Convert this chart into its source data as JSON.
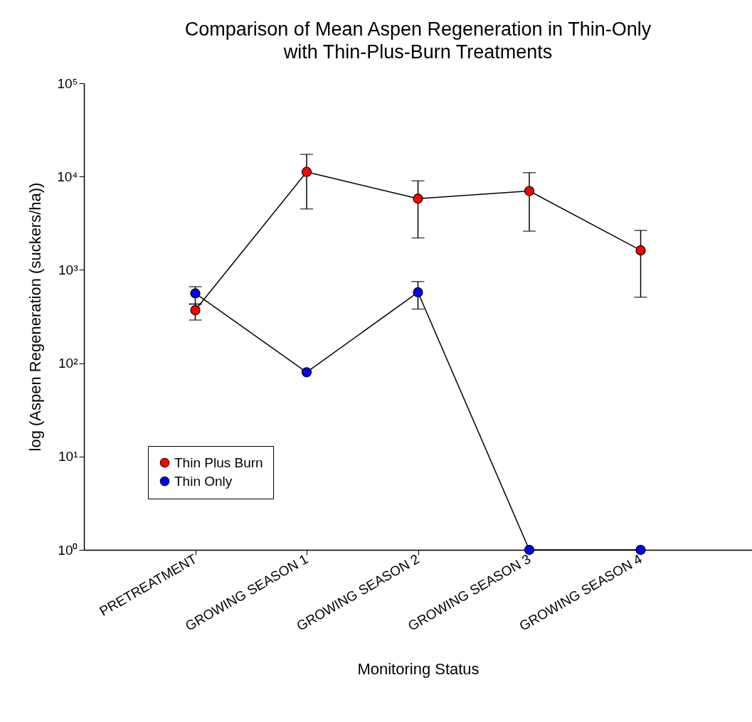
{
  "chart_data": {
    "type": "line",
    "title": "Comparison of Mean Aspen Regeneration in Thin-Only with Thin-Plus-Burn Treatments",
    "xlabel": "Monitoring Status",
    "ylabel": "log (Aspen Regeneration (suckers/ha))",
    "categories": [
      "PRETREATMENT",
      "GROWING SEASON 1",
      "GROWING SEASON 2",
      "GROWING SEASON 3",
      "GROWING SEASON 4"
    ],
    "log": true,
    "ylim": [
      1,
      100000
    ],
    "yticks": [
      {
        "value": 1,
        "label": "10⁰"
      },
      {
        "value": 10,
        "label": "10¹"
      },
      {
        "value": 100,
        "label": "10²"
      },
      {
        "value": 1000,
        "label": "10³"
      },
      {
        "value": 10000,
        "label": "10⁴"
      },
      {
        "value": 100000,
        "label": "10⁵"
      }
    ],
    "marker": "circle",
    "line_style": "solid",
    "legend": "bottom left",
    "series": [
      {
        "name": "Thin Plus Burn",
        "color": "#ff0000",
        "values": [
          370,
          11200,
          5800,
          7000,
          1620
        ],
        "errors": [
          [
            290,
            430
          ],
          [
            4500,
            17300
          ],
          [
            2200,
            9000
          ],
          [
            2600,
            11000
          ],
          [
            510,
            2650
          ]
        ]
      },
      {
        "name": "Thin Only",
        "color": "#0000ff",
        "values": [
          560,
          80,
          575,
          1,
          1
        ],
        "errors": [
          [
            430,
            660
          ],
          null,
          [
            380,
            750
          ],
          null,
          null
        ]
      }
    ]
  }
}
